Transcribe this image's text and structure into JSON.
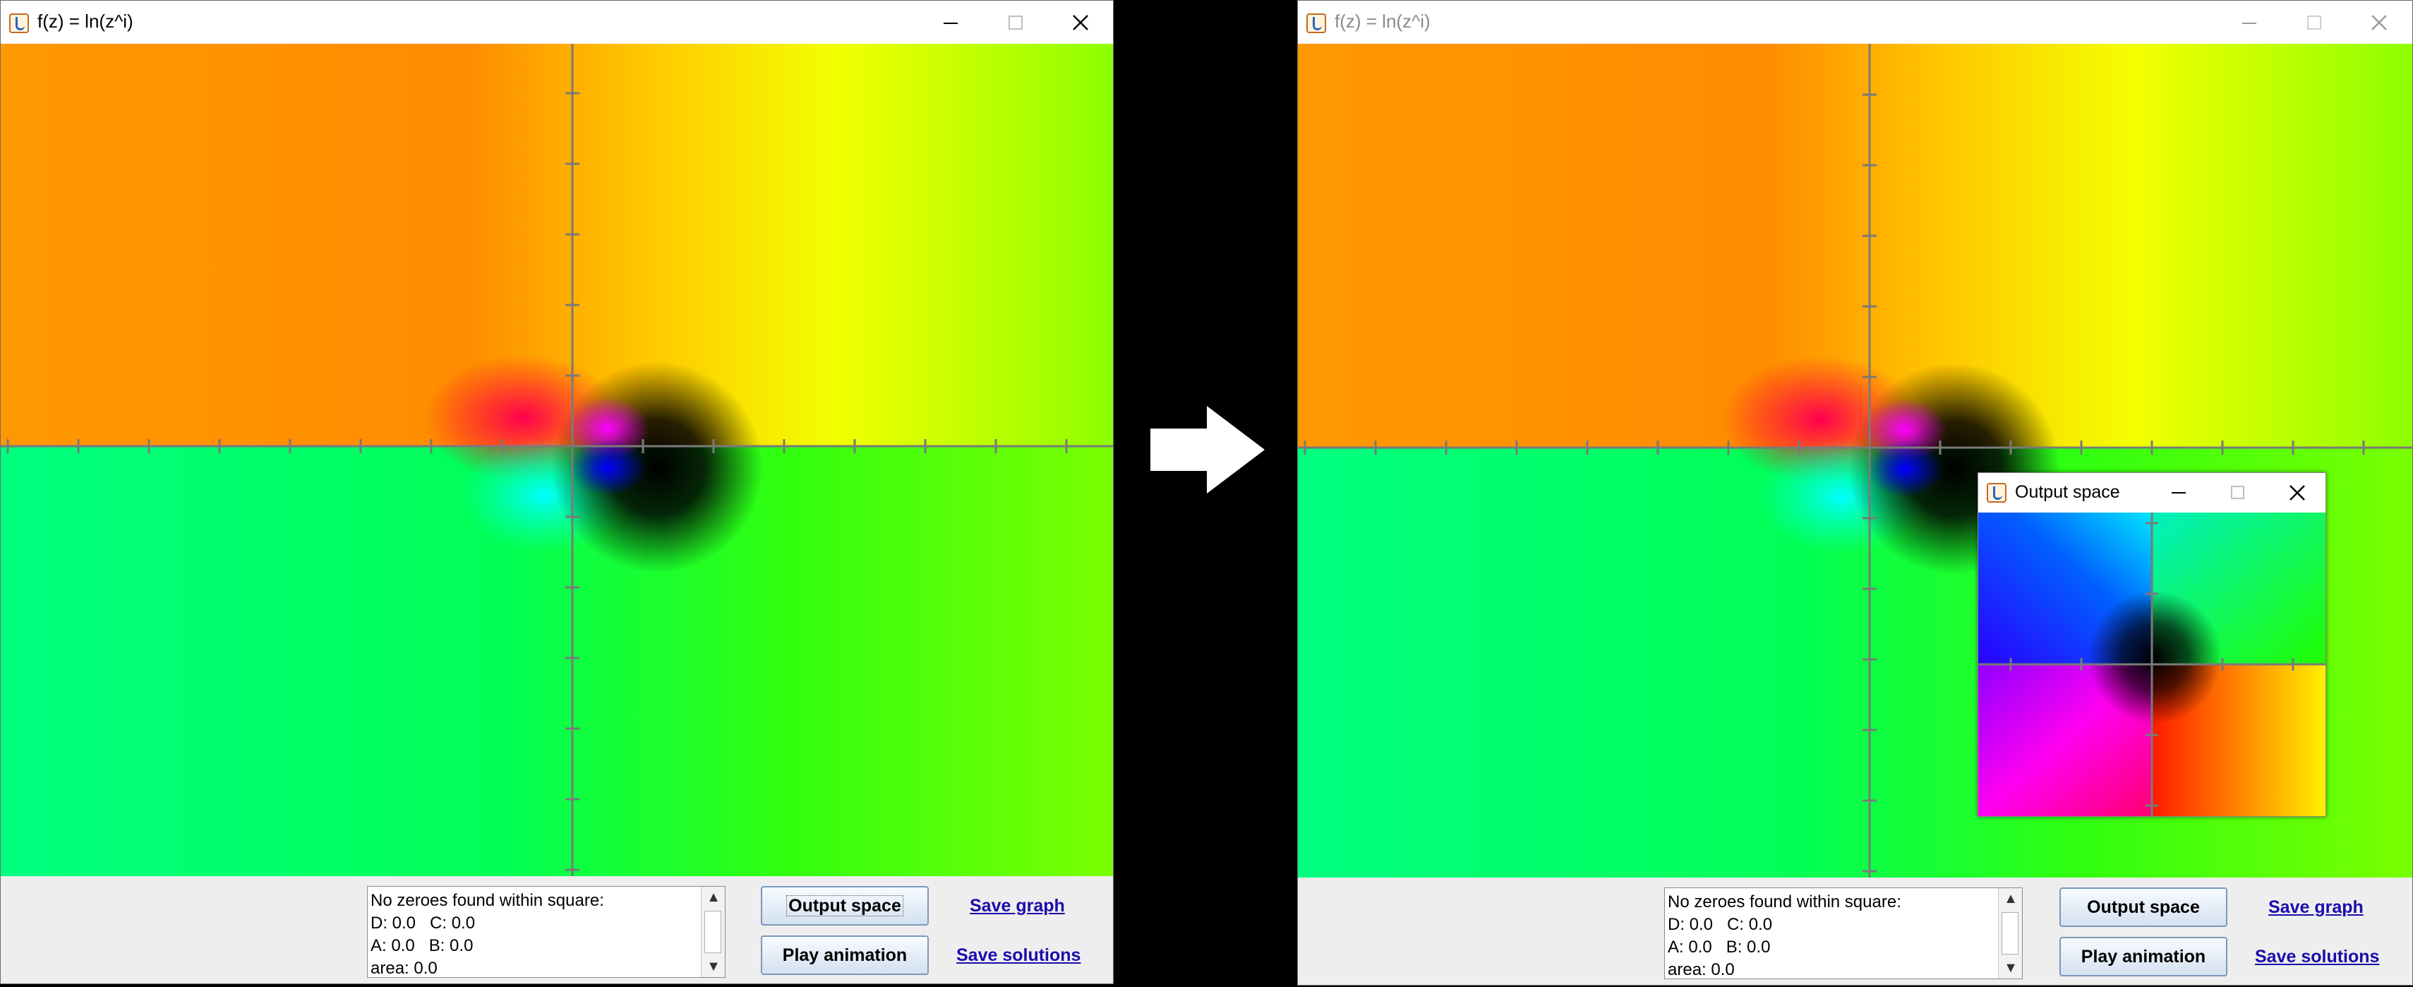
{
  "left_window": {
    "title": "f(z) = ln(z^i)",
    "status_lines": [
      "No zeroes found within square:",
      "D: 0.0   C: 0.0",
      "A: 0.0   B: 0.0",
      "area: 0.0"
    ],
    "buttons": {
      "output_space": "Output space",
      "play_animation": "Play animation"
    },
    "links": {
      "save_graph": "Save graph",
      "save_solutions": "Save solutions"
    }
  },
  "right_window": {
    "title": "f(z) = ln(z^i)",
    "status_lines": [
      "No zeroes found within square:",
      "D: 0.0   C: 0.0",
      "A: 0.0   B: 0.0",
      "area: 0.0"
    ],
    "buttons": {
      "output_space": "Output space",
      "play_animation": "Play animation"
    },
    "links": {
      "save_graph": "Save graph",
      "save_solutions": "Save solutions"
    }
  },
  "popup": {
    "title": "Output space"
  },
  "icons": {
    "app": "java-cup-icon",
    "minimize": "minimize-icon",
    "maximize": "maximize-icon",
    "close": "close-icon",
    "transition": "right-arrow-icon"
  },
  "colors": {
    "axis": "#7a7a7a",
    "link": "#1a0dab",
    "button_border": "#7a98bd",
    "panel": "#eeeeee"
  }
}
